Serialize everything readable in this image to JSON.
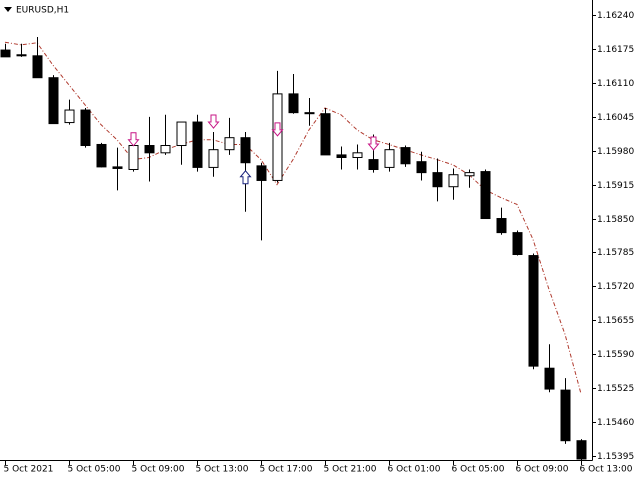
{
  "chart_data": {
    "type": "candlestick",
    "title": "EURUSD,H1",
    "categories": [
      "5 Oct 2021",
      null,
      null,
      null,
      "5 Oct 05:00",
      null,
      null,
      null,
      "5 Oct 09:00",
      null,
      null,
      null,
      "5 Oct 13:00",
      null,
      null,
      null,
      "5 Oct 17:00",
      null,
      null,
      null,
      "5 Oct 21:00",
      null,
      null,
      null,
      "6 Oct 01:00",
      null,
      null,
      null,
      "6 Oct 05:00",
      null,
      null,
      null,
      "6 Oct 09:00",
      null,
      null,
      null,
      "6 Oct 13:00"
    ],
    "open": [
      1.16173,
      1.16164,
      1.16162,
      1.1612,
      1.16034,
      1.16058,
      1.15992,
      1.15949,
      1.15944,
      1.1599,
      1.15976,
      1.1599,
      1.16035,
      1.15948,
      1.15982,
      1.16005,
      1.15951,
      1.15923,
      1.16089,
      1.16053,
      1.16051,
      1.15972,
      1.15967,
      1.15963,
      1.15948,
      1.15986,
      1.15959,
      1.15938,
      1.15911,
      1.15932,
      1.1594,
      1.1585,
      1.15823,
      1.15779,
      1.15563,
      1.15521,
      1.15424
    ],
    "high": [
      1.16185,
      1.16185,
      1.16198,
      1.16125,
      1.16078,
      1.16062,
      1.15995,
      1.15986,
      1.16011,
      1.16045,
      1.16049,
      1.16035,
      1.16049,
      1.16016,
      1.16043,
      1.16016,
      1.15957,
      1.16133,
      1.16127,
      1.16081,
      1.16062,
      1.15988,
      1.15992,
      1.16011,
      1.15995,
      1.1599,
      1.15978,
      1.15965,
      1.15946,
      1.15944,
      1.15944,
      1.15871,
      1.15827,
      1.15783,
      1.15609,
      1.15544,
      1.15427
    ],
    "low": [
      1.1616,
      1.1616,
      1.1612,
      1.16032,
      1.1603,
      1.15986,
      1.15948,
      1.15904,
      1.1594,
      1.15921,
      1.15972,
      1.15953,
      1.1594,
      1.1593,
      1.15972,
      1.15863,
      1.15808,
      1.15919,
      1.16051,
      1.16028,
      1.15972,
      1.15944,
      1.15944,
      1.15938,
      1.1594,
      1.15949,
      1.15923,
      1.15883,
      1.15886,
      1.15909,
      1.1585,
      1.15819,
      1.15779,
      1.15561,
      1.15517,
      1.15418,
      1.15385
    ],
    "close": [
      1.1616,
      1.16162,
      1.1612,
      1.16032,
      1.16058,
      1.1599,
      1.15949,
      1.15946,
      1.1599,
      1.15976,
      1.1599,
      1.16035,
      1.15948,
      1.15982,
      1.16005,
      1.15957,
      1.15923,
      1.16089,
      1.16053,
      1.16051,
      1.15972,
      1.15967,
      1.15976,
      1.15944,
      1.15982,
      1.15955,
      1.15938,
      1.15911,
      1.15934,
      1.15938,
      1.1585,
      1.15823,
      1.15781,
      1.15567,
      1.15523,
      1.15424,
      1.15389
    ],
    "up_color": "#ffffff",
    "down_color": "#000000",
    "signal_line": {
      "color": "#b03a2e",
      "values": [
        1.16188,
        1.16183,
        1.16187,
        1.16144,
        1.16106,
        1.16068,
        1.1603,
        1.16001,
        1.15963,
        1.15967,
        1.15982,
        1.15992,
        1.16001,
        1.16001,
        1.15992,
        1.15992,
        1.15963,
        1.15915,
        1.15963,
        1.1602,
        1.16062,
        1.16049,
        1.1602,
        1.16001,
        1.15992,
        1.15982,
        1.15972,
        1.15963,
        1.15953,
        1.15934,
        1.15905,
        1.1589,
        1.15877,
        1.1581,
        1.15714,
        1.15628,
        1.15514
      ]
    },
    "sell_arrows": {
      "color": "#c71585",
      "values": [
        null,
        null,
        null,
        null,
        null,
        null,
        null,
        null,
        1.16001,
        null,
        null,
        null,
        null,
        1.16035,
        null,
        null,
        null,
        1.1602,
        null,
        null,
        null,
        null,
        null,
        1.15993,
        null,
        null,
        null,
        null,
        null,
        null,
        null,
        null,
        null,
        null,
        null,
        null,
        null
      ]
    },
    "buy_arrows": {
      "color": "#1a237e",
      "values": [
        null,
        null,
        null,
        null,
        null,
        null,
        null,
        null,
        null,
        null,
        null,
        null,
        null,
        null,
        null,
        1.1593,
        null,
        null,
        null,
        null,
        null,
        null,
        null,
        null,
        null,
        null,
        null,
        null,
        null,
        null,
        null,
        null,
        null,
        null,
        null,
        null,
        null
      ]
    },
    "ylim": [
      1.15387,
      1.16269
    ],
    "yticks": [
      {
        "value": 1.1624,
        "label": "1.16240"
      },
      1.16175,
      {
        "value": 1.1611,
        "label": "1.16110"
      },
      1.16045,
      {
        "value": 1.1598,
        "label": "1.15980"
      },
      1.15915,
      {
        "value": 1.1585,
        "label": "1.15850"
      },
      1.15785,
      {
        "value": 1.1572,
        "label": "1.15720"
      },
      1.15655,
      {
        "value": 1.1559,
        "label": "1.15590"
      },
      1.15525,
      {
        "value": 1.1546,
        "label": "1.15460"
      },
      1.15395
    ]
  }
}
